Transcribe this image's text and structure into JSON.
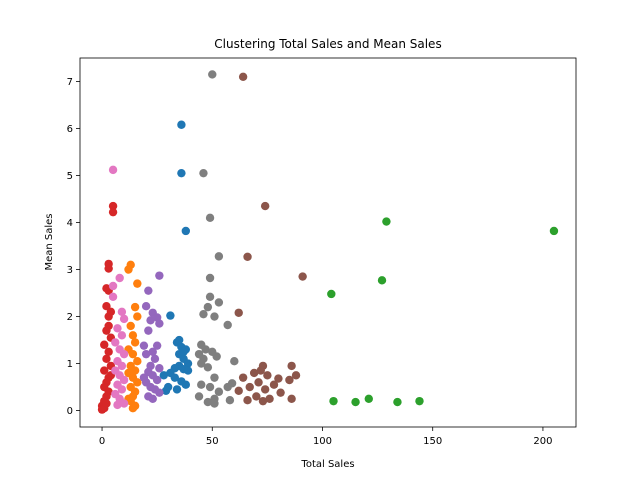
{
  "chart_data": {
    "type": "scatter",
    "title": "Clustering Total Sales and Mean Sales",
    "xlabel": "Total Sales",
    "ylabel": "Mean Sales",
    "xlim": [
      -10,
      215
    ],
    "ylim": [
      -0.35,
      7.5
    ],
    "xticks": [
      0,
      50,
      100,
      150,
      200
    ],
    "yticks": [
      0,
      1,
      2,
      3,
      4,
      5,
      6,
      7
    ],
    "grid": false,
    "legend": "none",
    "series": [
      {
        "color": "#1f77b4",
        "points": [
          [
            36,
            6.08
          ],
          [
            36,
            5.05
          ],
          [
            38,
            3.82
          ],
          [
            31,
            2.02
          ],
          [
            34,
            1.45
          ],
          [
            36,
            1.35
          ],
          [
            38,
            1.3
          ],
          [
            35,
            1.2
          ],
          [
            37,
            1.1
          ],
          [
            39,
            1.0
          ],
          [
            35,
            0.95
          ],
          [
            33,
            0.9
          ],
          [
            37,
            0.88
          ],
          [
            39,
            0.85
          ],
          [
            31,
            0.8
          ],
          [
            28,
            0.75
          ],
          [
            33,
            0.7
          ],
          [
            36,
            0.62
          ],
          [
            38,
            0.55
          ],
          [
            30,
            0.5
          ],
          [
            34,
            0.45
          ],
          [
            29,
            0.42
          ],
          [
            35,
            1.5
          ],
          [
            37,
            1.25
          ]
        ]
      },
      {
        "color": "#ff7f0e",
        "points": [
          [
            13,
            3.1
          ],
          [
            12,
            3.0
          ],
          [
            16,
            2.7
          ],
          [
            15,
            2.2
          ],
          [
            16,
            2.0
          ],
          [
            13,
            1.8
          ],
          [
            14,
            1.6
          ],
          [
            15,
            1.45
          ],
          [
            12,
            1.3
          ],
          [
            14,
            1.2
          ],
          [
            16,
            1.05
          ],
          [
            13,
            0.95
          ],
          [
            15,
            0.85
          ],
          [
            12,
            0.8
          ],
          [
            14,
            0.7
          ],
          [
            16,
            0.6
          ],
          [
            13,
            0.5
          ],
          [
            15,
            0.4
          ],
          [
            14,
            0.3
          ],
          [
            13,
            0.2
          ],
          [
            15,
            0.1
          ],
          [
            14,
            0.05
          ],
          [
            12,
            0.25
          ]
        ]
      },
      {
        "color": "#2ca02c",
        "points": [
          [
            205,
            3.82
          ],
          [
            129,
            4.02
          ],
          [
            127,
            2.77
          ],
          [
            104,
            2.48
          ],
          [
            105,
            0.2
          ],
          [
            115,
            0.18
          ],
          [
            121,
            0.25
          ],
          [
            134,
            0.18
          ],
          [
            144,
            0.2
          ]
        ]
      },
      {
        "color": "#d62728",
        "points": [
          [
            5,
            4.35
          ],
          [
            5,
            4.22
          ],
          [
            3,
            3.12
          ],
          [
            3,
            3.02
          ],
          [
            2,
            2.6
          ],
          [
            3,
            2.55
          ],
          [
            2,
            2.22
          ],
          [
            4,
            2.1
          ],
          [
            3,
            2.0
          ],
          [
            2,
            1.7
          ],
          [
            4,
            1.55
          ],
          [
            1,
            1.4
          ],
          [
            3,
            1.25
          ],
          [
            2,
            1.1
          ],
          [
            4,
            0.95
          ],
          [
            1,
            0.85
          ],
          [
            3,
            0.7
          ],
          [
            2,
            0.6
          ],
          [
            1,
            0.5
          ],
          [
            3,
            0.4
          ],
          [
            2,
            0.3
          ],
          [
            1,
            0.2
          ],
          [
            0,
            0.1
          ],
          [
            1,
            0.05
          ],
          [
            4,
            0.75
          ],
          [
            2,
            0.15
          ],
          [
            0,
            0.02
          ],
          [
            3,
            1.8
          ]
        ]
      },
      {
        "color": "#9467bd",
        "points": [
          [
            26,
            2.87
          ],
          [
            21,
            2.55
          ],
          [
            20,
            2.22
          ],
          [
            23,
            2.08
          ],
          [
            25,
            1.98
          ],
          [
            22,
            1.92
          ],
          [
            21,
            1.7
          ],
          [
            26,
            1.85
          ],
          [
            25,
            1.38
          ],
          [
            19,
            1.38
          ],
          [
            23,
            1.25
          ],
          [
            20,
            1.2
          ],
          [
            24,
            1.1
          ],
          [
            22,
            0.95
          ],
          [
            26,
            0.9
          ],
          [
            21,
            0.82
          ],
          [
            23,
            0.75
          ],
          [
            25,
            0.65
          ],
          [
            20,
            0.6
          ],
          [
            22,
            0.5
          ],
          [
            24,
            0.45
          ],
          [
            26,
            0.38
          ],
          [
            21,
            0.3
          ],
          [
            23,
            0.25
          ],
          [
            19,
            0.7
          ]
        ]
      },
      {
        "color": "#8c564b",
        "points": [
          [
            64,
            7.1
          ],
          [
            74,
            4.35
          ],
          [
            66,
            3.27
          ],
          [
            91,
            2.85
          ],
          [
            62,
            2.08
          ],
          [
            73,
            0.95
          ],
          [
            86,
            0.95
          ],
          [
            72,
            0.85
          ],
          [
            69,
            0.8
          ],
          [
            75,
            0.75
          ],
          [
            88,
            0.75
          ],
          [
            64,
            0.7
          ],
          [
            80,
            0.68
          ],
          [
            85,
            0.65
          ],
          [
            71,
            0.6
          ],
          [
            78,
            0.55
          ],
          [
            67,
            0.5
          ],
          [
            74,
            0.45
          ],
          [
            62,
            0.42
          ],
          [
            81,
            0.38
          ],
          [
            70,
            0.3
          ],
          [
            66,
            0.22
          ],
          [
            73,
            0.2
          ],
          [
            76,
            0.25
          ],
          [
            86,
            0.25
          ]
        ]
      },
      {
        "color": "#e377c2",
        "points": [
          [
            5,
            5.12
          ],
          [
            5,
            2.65
          ],
          [
            8,
            2.82
          ],
          [
            5,
            2.42
          ],
          [
            9,
            2.1
          ],
          [
            10,
            1.95
          ],
          [
            7,
            1.75
          ],
          [
            9,
            1.6
          ],
          [
            6,
            1.45
          ],
          [
            8,
            1.3
          ],
          [
            10,
            1.2
          ],
          [
            7,
            1.05
          ],
          [
            9,
            0.95
          ],
          [
            6,
            0.85
          ],
          [
            8,
            0.75
          ],
          [
            10,
            0.65
          ],
          [
            7,
            0.55
          ],
          [
            9,
            0.45
          ],
          [
            6,
            0.35
          ],
          [
            8,
            0.25
          ],
          [
            10,
            0.15
          ],
          [
            7,
            0.12
          ]
        ]
      },
      {
        "color": "#7f7f7f",
        "points": [
          [
            50,
            7.15
          ],
          [
            46,
            5.05
          ],
          [
            49,
            4.1
          ],
          [
            53,
            3.28
          ],
          [
            49,
            2.82
          ],
          [
            49,
            2.42
          ],
          [
            53,
            2.3
          ],
          [
            48,
            2.2
          ],
          [
            46,
            2.05
          ],
          [
            51,
            2.0
          ],
          [
            57,
            1.82
          ],
          [
            45,
            1.4
          ],
          [
            47,
            1.3
          ],
          [
            44,
            1.2
          ],
          [
            46,
            1.1
          ],
          [
            52,
            1.15
          ],
          [
            50,
            1.25
          ],
          [
            45,
            1.0
          ],
          [
            60,
            1.05
          ],
          [
            48,
            0.92
          ],
          [
            51,
            0.7
          ],
          [
            45,
            0.55
          ],
          [
            49,
            0.5
          ],
          [
            59,
            0.58
          ],
          [
            57,
            0.5
          ],
          [
            53,
            0.4
          ],
          [
            44,
            0.3
          ],
          [
            51,
            0.25
          ],
          [
            48,
            0.18
          ],
          [
            58,
            0.22
          ],
          [
            51,
            0.15
          ]
        ]
      }
    ]
  }
}
